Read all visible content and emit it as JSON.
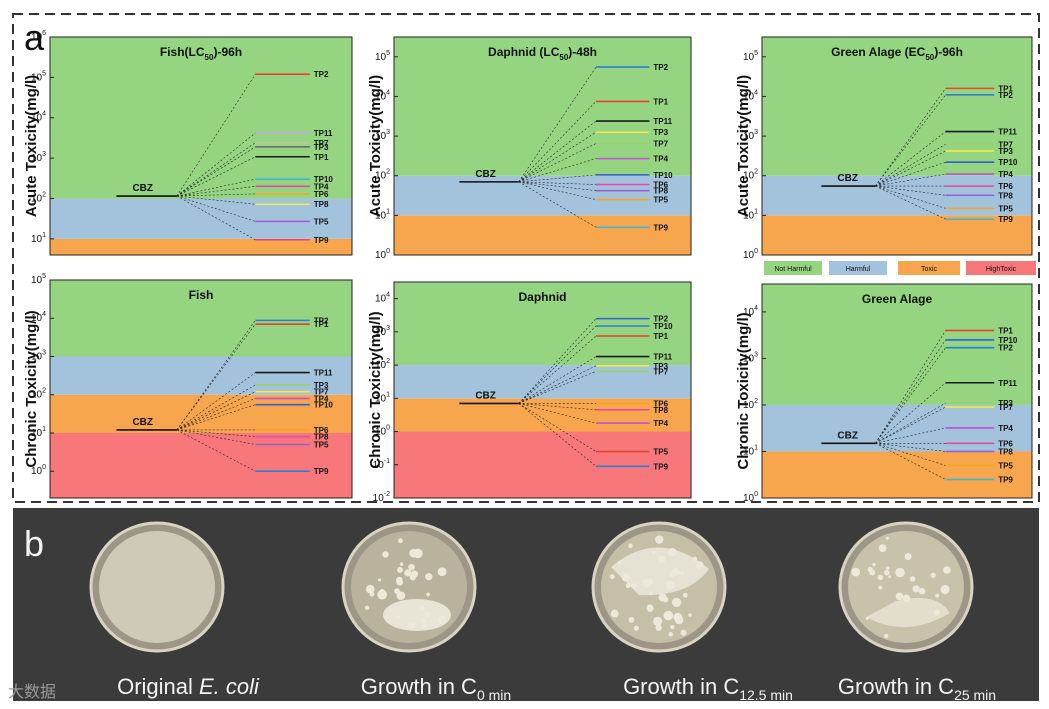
{
  "panel_a_label": "a",
  "panel_b_label": "b",
  "colors": {
    "not_harmful": "#95d581",
    "harmful": "#a3c3dd",
    "toxic": "#f7a64e",
    "high_toxic": "#f7777a",
    "frame": "#333333",
    "photo_bg": "#3b3b3b"
  },
  "legend": {
    "items": [
      {
        "label": "Not Harmful",
        "color": "#95d581"
      },
      {
        "label": "Harmful",
        "color": "#a3c3dd"
      },
      {
        "label": "Toxic",
        "color": "#f7a64e"
      },
      {
        "label": "HighToxic",
        "color": "#f7777a"
      }
    ]
  },
  "chart_data": [
    {
      "type": "line",
      "title": "Fish(LC50)-96h",
      "title_parts": [
        "Fish(LC",
        "50",
        ")-96h"
      ],
      "ylabel": "Acute Toxicity(mg/l)",
      "ylim_exp": [
        0.6,
        6
      ],
      "tick_exps": [
        1,
        2,
        3,
        4,
        5,
        6
      ],
      "bands": [
        [
          "toxic",
          0.6,
          1
        ],
        [
          "harmful",
          1,
          2
        ],
        [
          "not_harmful",
          2,
          6
        ]
      ],
      "parent": {
        "name": "CBZ",
        "value": 115
      },
      "tps": [
        {
          "name": "TP2",
          "value": 120000,
          "color": "#e8412c"
        },
        {
          "name": "TP11",
          "value": 4200,
          "color": "#c9a3e6"
        },
        {
          "name": "TP7",
          "value": 2400,
          "color": "#b7c99a"
        },
        {
          "name": "TP3",
          "value": 1900,
          "color": "#6d6d6d"
        },
        {
          "name": "TP1",
          "value": 1080,
          "color": "#1a1a1a"
        },
        {
          "name": "TP10",
          "value": 300,
          "color": "#3fb6d6"
        },
        {
          "name": "TP4",
          "value": 200,
          "color": "#e14ca8"
        },
        {
          "name": "TP6",
          "value": 130,
          "color": "#f5a623"
        },
        {
          "name": "TP8",
          "value": 72,
          "color": "#f4e845"
        },
        {
          "name": "TP5",
          "value": 27,
          "color": "#9b5fd6"
        },
        {
          "name": "TP9",
          "value": 9.5,
          "color": "#e8437a"
        }
      ]
    },
    {
      "type": "line",
      "title": "Daphnid (LC50)-48h",
      "title_parts": [
        "Daphnid (LC",
        "50",
        ")-48h"
      ],
      "ylabel": "Acute Toxicity(mg/l)",
      "ylim_exp": [
        0,
        5.5
      ],
      "tick_exps": [
        0,
        1,
        2,
        3,
        4,
        5
      ],
      "bands": [
        [
          "toxic",
          0,
          1
        ],
        [
          "harmful",
          1,
          2
        ],
        [
          "not_harmful",
          2,
          5.5
        ]
      ],
      "parent": {
        "name": "CBZ",
        "value": 70
      },
      "tps": [
        {
          "name": "TP2",
          "value": 55000,
          "color": "#2e7fd4"
        },
        {
          "name": "TP1",
          "value": 7500,
          "color": "#e8412c"
        },
        {
          "name": "TP11",
          "value": 2400,
          "color": "#1a1a1a"
        },
        {
          "name": "TP3",
          "value": 1250,
          "color": "#f4e845"
        },
        {
          "name": "TP7",
          "value": 650,
          "color": "#9bd06b"
        },
        {
          "name": "TP4",
          "value": 270,
          "color": "#c54fd6"
        },
        {
          "name": "TP10",
          "value": 105,
          "color": "#2e5fd4"
        },
        {
          "name": "TP6",
          "value": 60,
          "color": "#e14ca8"
        },
        {
          "name": "TP8",
          "value": 42,
          "color": "#9b5fd6"
        },
        {
          "name": "TP5",
          "value": 25,
          "color": "#f5a623"
        },
        {
          "name": "TP9",
          "value": 5,
          "color": "#3fb6d6"
        }
      ]
    },
    {
      "type": "line",
      "title": "Green Alage (EC50)-96h",
      "title_parts": [
        "Green Alage (EC",
        "50",
        ")-96h"
      ],
      "ylabel": "Acute Toxicity(mg/l)",
      "ylim_exp": [
        0,
        5.5
      ],
      "tick_exps": [
        0,
        1,
        2,
        3,
        4,
        5
      ],
      "bands": [
        [
          "toxic",
          0,
          1
        ],
        [
          "harmful",
          1,
          2
        ],
        [
          "not_harmful",
          2,
          5.5
        ]
      ],
      "parent": {
        "name": "CBZ",
        "value": 55
      },
      "tps": [
        {
          "name": "TP1",
          "value": 16000,
          "color": "#e8412c"
        },
        {
          "name": "TP2",
          "value": 11000,
          "color": "#2e7fd4"
        },
        {
          "name": "TP11",
          "value": 1300,
          "color": "#1a1a1a"
        },
        {
          "name": "TP7",
          "value": 620,
          "color": "#9bd06b"
        },
        {
          "name": "TP3",
          "value": 420,
          "color": "#f4e845"
        },
        {
          "name": "TP10",
          "value": 220,
          "color": "#2e5fd4"
        },
        {
          "name": "TP4",
          "value": 110,
          "color": "#c54fd6"
        },
        {
          "name": "TP6",
          "value": 55,
          "color": "#e14ca8"
        },
        {
          "name": "TP8",
          "value": 32,
          "color": "#9b5fd6"
        },
        {
          "name": "TP5",
          "value": 15,
          "color": "#f5a623"
        },
        {
          "name": "TP9",
          "value": 8,
          "color": "#3fb6d6"
        }
      ]
    },
    {
      "type": "line",
      "title": "Fish",
      "title_parts": [
        "Fish",
        "",
        ""
      ],
      "ylabel": "Chronic Toxicity(mg/l)",
      "ylim_exp": [
        -0.7,
        5
      ],
      "tick_exps": [
        0,
        1,
        2,
        3,
        4,
        5
      ],
      "bands": [
        [
          "high_toxic",
          -0.7,
          1
        ],
        [
          "toxic",
          1,
          2
        ],
        [
          "harmful",
          2,
          3
        ],
        [
          "not_harmful",
          3,
          5
        ]
      ],
      "parent": {
        "name": "CBZ",
        "value": 12
      },
      "tps": [
        {
          "name": "TP2",
          "value": 8800,
          "color": "#2e7fd4"
        },
        {
          "name": "TP1",
          "value": 7000,
          "color": "#e8412c"
        },
        {
          "name": "TP11",
          "value": 380,
          "color": "#1a1a1a"
        },
        {
          "name": "TP3",
          "value": 180,
          "color": "#9bd06b"
        },
        {
          "name": "TP7",
          "value": 120,
          "color": "#f4e845"
        },
        {
          "name": "TP4",
          "value": 80,
          "color": "#c54fd6"
        },
        {
          "name": "TP10",
          "value": 55,
          "color": "#2e5fd4"
        },
        {
          "name": "TP6",
          "value": 12,
          "color": "#f5a623"
        },
        {
          "name": "TP8",
          "value": 8,
          "color": "#e14ca8"
        },
        {
          "name": "TP5",
          "value": 5,
          "color": "#9b5fd6"
        },
        {
          "name": "TP9",
          "value": 1,
          "color": "#2e7fd4"
        }
      ]
    },
    {
      "type": "line",
      "title": "Daphnid",
      "title_parts": [
        "Daphnid",
        "",
        ""
      ],
      "ylabel": "Chronic Toxicity(mg/l)",
      "ylim_exp": [
        -2,
        4.5
      ],
      "tick_exps": [
        -2,
        -1,
        0,
        1,
        2,
        3,
        4
      ],
      "bands": [
        [
          "high_toxic",
          -2,
          0
        ],
        [
          "toxic",
          0,
          1
        ],
        [
          "harmful",
          1,
          2
        ],
        [
          "not_harmful",
          2,
          4.5
        ]
      ],
      "parent": {
        "name": "CBZ",
        "value": 7
      },
      "tps": [
        {
          "name": "TP2",
          "value": 2500,
          "color": "#2e5fd4"
        },
        {
          "name": "TP10",
          "value": 1500,
          "color": "#2e7fd4"
        },
        {
          "name": "TP1",
          "value": 750,
          "color": "#e8412c"
        },
        {
          "name": "TP11",
          "value": 180,
          "color": "#1a1a1a"
        },
        {
          "name": "TP3",
          "value": 95,
          "color": "#f4e845"
        },
        {
          "name": "TP7",
          "value": 65,
          "color": "#9bd06b"
        },
        {
          "name": "TP6",
          "value": 7,
          "color": "#f5a623"
        },
        {
          "name": "TP8",
          "value": 4.5,
          "color": "#e14ca8"
        },
        {
          "name": "TP4",
          "value": 1.8,
          "color": "#c54fd6"
        },
        {
          "name": "TP5",
          "value": 0.25,
          "color": "#e8412c"
        },
        {
          "name": "TP9",
          "value": 0.09,
          "color": "#2e7fd4"
        }
      ]
    },
    {
      "type": "line",
      "title": "Green Alage",
      "title_parts": [
        "Green Alage",
        "",
        ""
      ],
      "ylabel": "Chronic Toxicity(mg/l)",
      "ylim_exp": [
        0,
        4.6
      ],
      "tick_exps": [
        0,
        1,
        2,
        3,
        4
      ],
      "bands": [
        [
          "toxic",
          0,
          1
        ],
        [
          "harmful",
          1,
          2
        ],
        [
          "not_harmful",
          2,
          4.6
        ]
      ],
      "parent": {
        "name": "CBZ",
        "value": 15
      },
      "tps": [
        {
          "name": "TP1",
          "value": 4000,
          "color": "#e8412c"
        },
        {
          "name": "TP10",
          "value": 2500,
          "color": "#2e5fd4"
        },
        {
          "name": "TP2",
          "value": 1700,
          "color": "#2e7fd4"
        },
        {
          "name": "TP11",
          "value": 300,
          "color": "#1a1a1a"
        },
        {
          "name": "TP3",
          "value": 110,
          "color": "#9bd06b"
        },
        {
          "name": "TP7",
          "value": 90,
          "color": "#f4e845"
        },
        {
          "name": "TP4",
          "value": 32,
          "color": "#c54fd6"
        },
        {
          "name": "TP6",
          "value": 15,
          "color": "#e14ca8"
        },
        {
          "name": "TP8",
          "value": 10,
          "color": "#9b5fd6"
        },
        {
          "name": "TP5",
          "value": 5,
          "color": "#f5a623"
        },
        {
          "name": "TP9",
          "value": 2.5,
          "color": "#3fb6d6"
        }
      ]
    }
  ],
  "photos": [
    {
      "caption": "Original ",
      "caption_italic": "E. coli",
      "sub": ""
    },
    {
      "caption": "Growth in C",
      "caption_italic": "",
      "sub": "0 min"
    },
    {
      "caption": "Growth in C",
      "caption_italic": "",
      "sub": "12.5 min"
    },
    {
      "caption": "Growth in C",
      "caption_italic": "",
      "sub": "25 min"
    }
  ],
  "watermark": "大数据"
}
